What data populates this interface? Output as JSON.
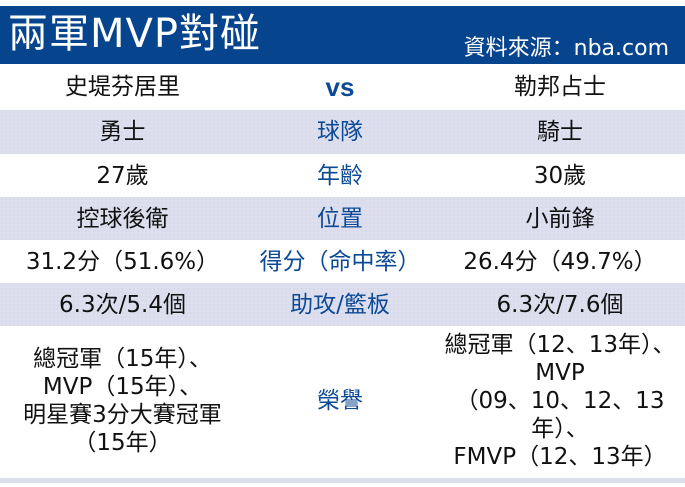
{
  "header": {
    "title": "兩軍MVP對碰",
    "source": "資料來源：nba.com"
  },
  "players": {
    "left": "史堤芬居里",
    "vs": "vs",
    "right": "勒邦占士"
  },
  "rows": [
    {
      "label": "球隊",
      "left": "勇士",
      "right": "騎士"
    },
    {
      "label": "年齡",
      "left": "27歲",
      "right": "30歲"
    },
    {
      "label": "位置",
      "left": "控球後衛",
      "right": "小前鋒"
    },
    {
      "label": "得分（命中率）",
      "left": "31.2分（51.6%）",
      "right": "26.4分（49.7%）"
    },
    {
      "label": "助攻/籃板",
      "left": "6.3次/5.4個",
      "right": "6.3次/7.6個"
    }
  ],
  "honors": {
    "label": "榮譽",
    "left": [
      "總冠軍（15年）、",
      "MVP（15年）、",
      "明星賽3分大賽冠軍",
      "（15年）"
    ],
    "right": [
      "總冠軍（12、13年）、",
      "MVP",
      "（09、10、12、13年）、",
      "FMVP（12、13年）"
    ]
  }
}
